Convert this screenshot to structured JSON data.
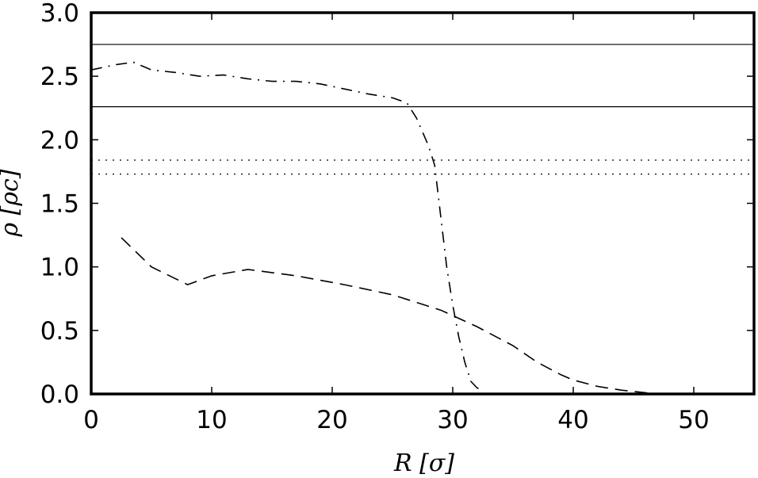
{
  "chart_data": {
    "type": "line",
    "xlabel": "R [σ]",
    "ylabel": "ρ [ρc]",
    "xlim": [
      0,
      55
    ],
    "ylim": [
      0,
      3.0
    ],
    "x_ticks": [
      0,
      10,
      20,
      30,
      40,
      50
    ],
    "y_ticks": [
      0.0,
      0.5,
      1.0,
      1.5,
      2.0,
      2.5,
      3.0
    ],
    "x_tick_labels": [
      "0",
      "10",
      "20",
      "30",
      "40",
      "50"
    ],
    "y_tick_labels": [
      "0.0",
      "0.5",
      "1.0",
      "1.5",
      "2.0",
      "2.5",
      "3.0"
    ],
    "grid": false,
    "series": [
      {
        "style": "dashdot",
        "x": [
          0,
          2,
          3.5,
          5,
          7,
          9,
          11,
          13,
          15,
          17,
          19,
          21,
          23,
          25,
          26.2,
          27,
          28,
          28.5,
          29,
          29.5,
          30,
          30.5,
          31,
          31.5,
          32,
          32.5
        ],
        "y": [
          2.55,
          2.59,
          2.61,
          2.55,
          2.53,
          2.5,
          2.51,
          2.48,
          2.46,
          2.46,
          2.44,
          2.4,
          2.36,
          2.33,
          2.29,
          2.17,
          1.95,
          1.8,
          1.4,
          1.0,
          0.7,
          0.45,
          0.25,
          0.1,
          0.05,
          0.02
        ]
      },
      {
        "style": "dashed",
        "x": [
          2.5,
          5,
          8,
          10,
          13,
          17,
          21,
          25,
          29,
          32,
          35,
          37,
          39,
          40,
          42,
          44,
          46,
          47
        ],
        "y": [
          1.23,
          1.0,
          0.86,
          0.93,
          0.98,
          0.93,
          0.86,
          0.78,
          0.66,
          0.53,
          0.38,
          0.25,
          0.15,
          0.11,
          0.06,
          0.03,
          0.01,
          0.0
        ]
      }
    ],
    "hlines": [
      {
        "style": "solid",
        "y": 2.75
      },
      {
        "style": "solid",
        "y": 2.26
      },
      {
        "style": "dotted",
        "y": 1.84
      },
      {
        "style": "dotted",
        "y": 1.73
      }
    ]
  }
}
